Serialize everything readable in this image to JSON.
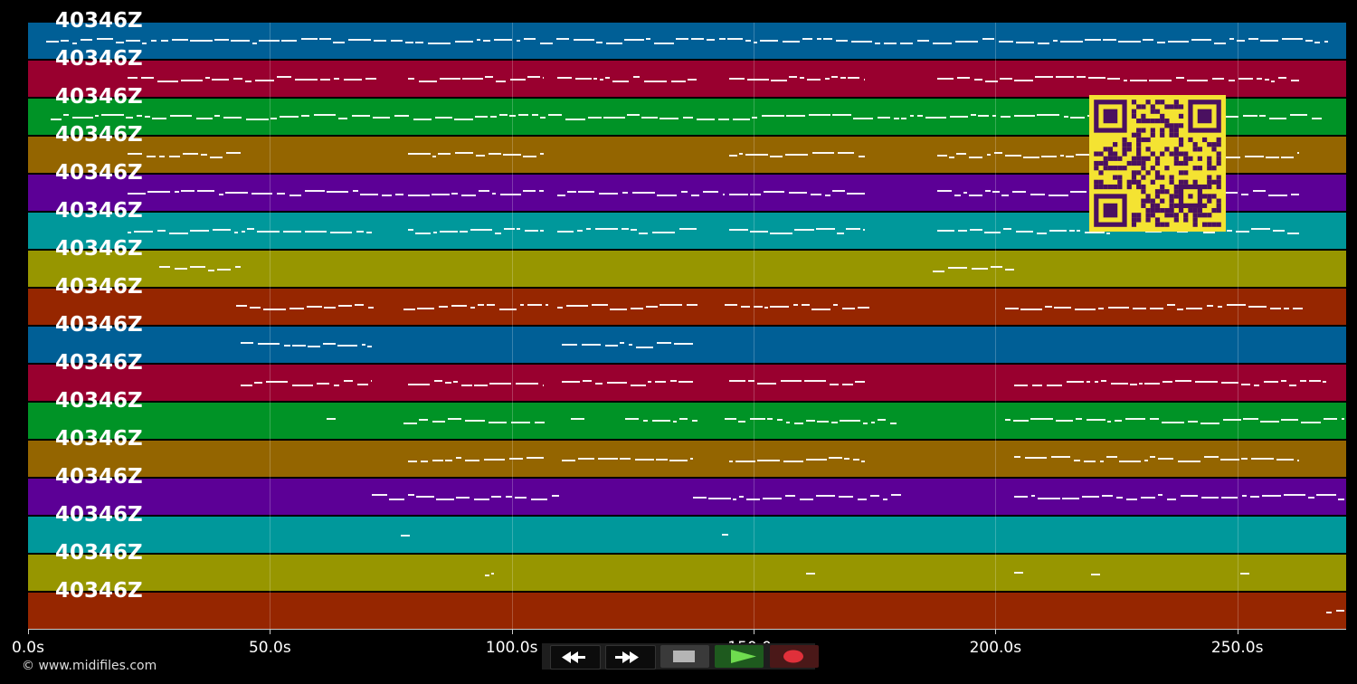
{
  "tracks": [
    {
      "label": "40346Z",
      "color": "#005f96"
    },
    {
      "label": "40346Z",
      "color": "#99002f"
    },
    {
      "label": "40346Z",
      "color": "#009326"
    },
    {
      "label": "40346Z",
      "color": "#946500"
    },
    {
      "label": "40346Z",
      "color": "#5c0096"
    },
    {
      "label": "40346Z",
      "color": "#00989b"
    },
    {
      "label": "40346Z",
      "color": "#979600"
    },
    {
      "label": "40346Z",
      "color": "#962600"
    },
    {
      "label": "40346Z",
      "color": "#005f96"
    },
    {
      "label": "40346Z",
      "color": "#99002f"
    },
    {
      "label": "40346Z",
      "color": "#009326"
    },
    {
      "label": "40346Z",
      "color": "#946500"
    },
    {
      "label": "40346Z",
      "color": "#5c0096"
    },
    {
      "label": "40346Z",
      "color": "#00989b"
    },
    {
      "label": "40346Z",
      "color": "#979600"
    },
    {
      "label": "40346Z",
      "color": "#962600"
    }
  ],
  "axis": {
    "ticks": [
      "0.0s",
      "50.0s",
      "100.0s",
      "150.0s",
      "200.0s",
      "250.0s"
    ],
    "tick_values": [
      0,
      50,
      100,
      150,
      200,
      250
    ],
    "max_seconds": 272.5
  },
  "copyright": "© www.midifiles.com",
  "transport": {
    "rewind": "rewind-icon",
    "forward": "fast-forward-icon",
    "stop": "stop-icon",
    "play": "play-icon",
    "record": "record-icon"
  },
  "qr": "qr-code-icon"
}
